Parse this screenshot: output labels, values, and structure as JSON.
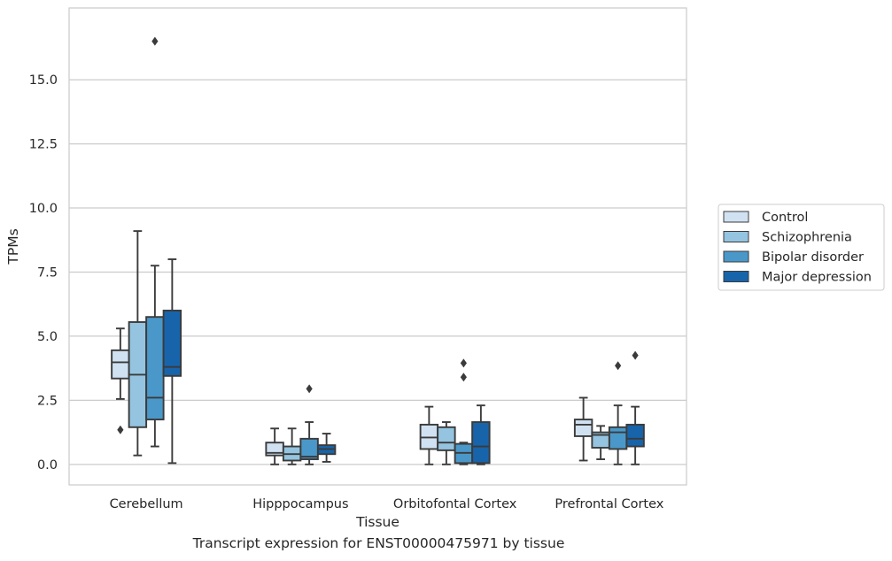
{
  "caption": "Transcript expression for ENST00000475971 by tissue",
  "chart_data": {
    "type": "boxplot",
    "xlabel": "Tissue",
    "ylabel": "TPMs",
    "ylim": [
      -0.8,
      17.8
    ],
    "yticks": [
      0.0,
      2.5,
      5.0,
      7.5,
      10.0,
      12.5,
      15.0
    ],
    "ytick_labels": [
      "0.0",
      "2.5",
      "5.0",
      "7.5",
      "10.0",
      "12.5",
      "15.0"
    ],
    "grid": "horizontal",
    "legend_placement": "right, outside plot",
    "categories": [
      "Cerebellum",
      "Hipppocampus",
      "Orbitofontal Cortex",
      "Prefrontal Cortex"
    ],
    "series": [
      {
        "name": "Control",
        "color": "#d0e1f2",
        "boxes": [
          {
            "whislo": 2.55,
            "q1": 3.35,
            "med": 3.98,
            "q3": 4.45,
            "whishi": 5.3,
            "fliers": [
              1.35
            ]
          },
          {
            "whislo": 0.0,
            "q1": 0.35,
            "med": 0.45,
            "q3": 0.85,
            "whishi": 1.4,
            "fliers": []
          },
          {
            "whislo": 0.0,
            "q1": 0.6,
            "med": 1.05,
            "q3": 1.55,
            "whishi": 2.25,
            "fliers": []
          },
          {
            "whislo": 0.15,
            "q1": 1.1,
            "med": 1.55,
            "q3": 1.75,
            "whishi": 2.6,
            "fliers": []
          }
        ]
      },
      {
        "name": "Schizophrenia",
        "color": "#94c4df",
        "boxes": [
          {
            "whislo": 0.35,
            "q1": 1.45,
            "med": 3.5,
            "q3": 5.55,
            "whishi": 9.1,
            "fliers": []
          },
          {
            "whislo": 0.0,
            "q1": 0.15,
            "med": 0.4,
            "q3": 0.7,
            "whishi": 1.4,
            "fliers": []
          },
          {
            "whislo": 0.0,
            "q1": 0.55,
            "med": 0.85,
            "q3": 1.45,
            "whishi": 1.65,
            "fliers": []
          },
          {
            "whislo": 0.2,
            "q1": 0.65,
            "med": 1.15,
            "q3": 1.25,
            "whishi": 1.5,
            "fliers": []
          }
        ]
      },
      {
        "name": "Bipolar disorder",
        "color": "#4a98c9",
        "boxes": [
          {
            "whislo": 0.7,
            "q1": 1.75,
            "med": 2.6,
            "q3": 5.75,
            "whishi": 7.75,
            "fliers": [
              16.5
            ]
          },
          {
            "whislo": 0.0,
            "q1": 0.2,
            "med": 0.3,
            "q3": 1.0,
            "whishi": 1.65,
            "fliers": [
              2.95
            ]
          },
          {
            "whislo": 0.0,
            "q1": 0.05,
            "med": 0.45,
            "q3": 0.8,
            "whishi": 0.85,
            "fliers": [
              3.4,
              3.95
            ]
          },
          {
            "whislo": 0.0,
            "q1": 0.6,
            "med": 1.25,
            "q3": 1.45,
            "whishi": 2.3,
            "fliers": [
              3.85
            ]
          }
        ]
      },
      {
        "name": "Major depression",
        "color": "#1764ab",
        "boxes": [
          {
            "whislo": 0.05,
            "q1": 3.45,
            "med": 3.8,
            "q3": 6.0,
            "whishi": 8.0,
            "fliers": []
          },
          {
            "whislo": 0.1,
            "q1": 0.4,
            "med": 0.6,
            "q3": 0.75,
            "whishi": 1.2,
            "fliers": []
          },
          {
            "whislo": 0.0,
            "q1": 0.05,
            "med": 0.7,
            "q3": 1.65,
            "whishi": 2.3,
            "fliers": []
          },
          {
            "whislo": 0.0,
            "q1": 0.7,
            "med": 1.0,
            "q3": 1.55,
            "whishi": 2.25,
            "fliers": [
              4.25
            ]
          }
        ]
      }
    ]
  }
}
